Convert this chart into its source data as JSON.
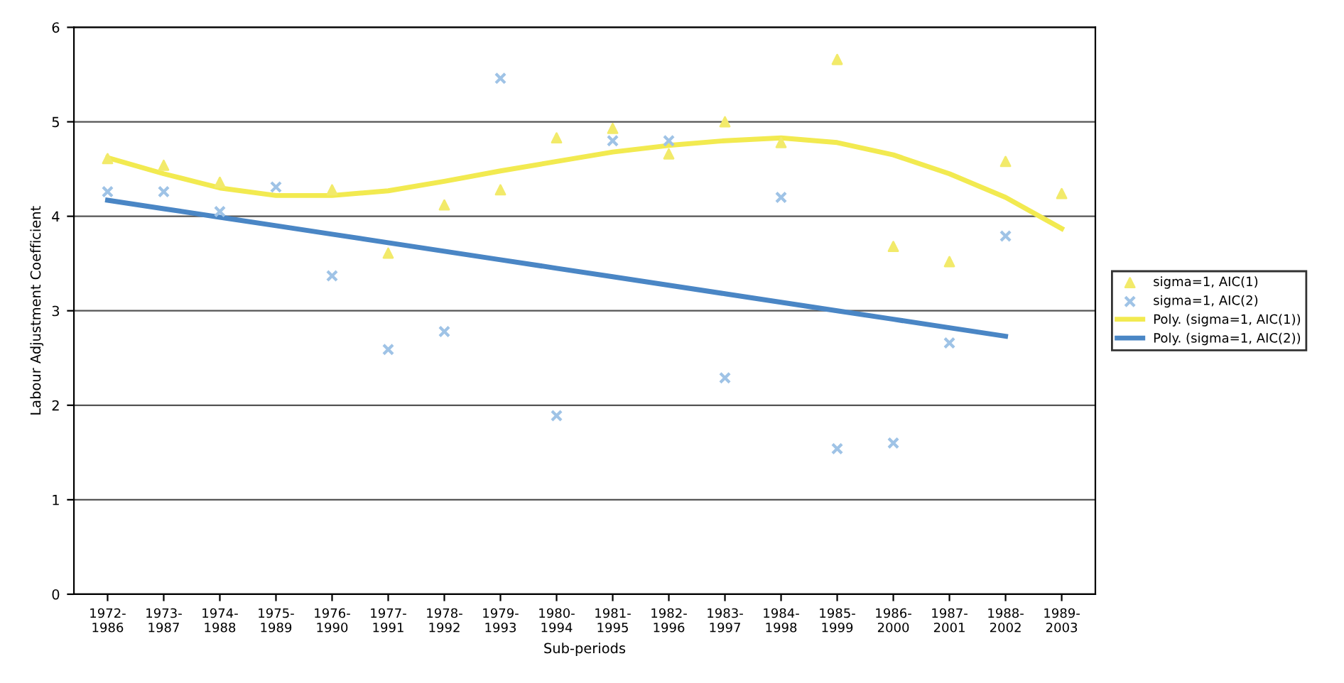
{
  "chart_data": {
    "type": "scatter",
    "xlabel": "Sub-periods",
    "ylabel": "Labour Adjustment Coefficient",
    "categories": [
      "1972-\n1986",
      "1973-\n1987",
      "1974-\n1988",
      "1975-\n1989",
      "1976-\n1990",
      "1977-\n1991",
      "1978-\n1992",
      "1979-\n1993",
      "1980-\n1994",
      "1981-\n1995",
      "1982-\n1996",
      "1983-\n1997",
      "1984-\n1998",
      "1985-\n1999",
      "1986-\n2000",
      "1987-\n2001",
      "1988-\n2002",
      "1989-\n2003"
    ],
    "series": [
      {
        "name": "sigma=1, AIC(1)",
        "marker": "triangle",
        "color": "#f2ea6a",
        "values": [
          4.61,
          4.54,
          4.36,
          null,
          4.28,
          3.61,
          4.12,
          4.28,
          4.83,
          4.93,
          4.66,
          5.0,
          4.78,
          5.66,
          3.68,
          3.52,
          4.58,
          4.24
        ]
      },
      {
        "name": "sigma=1, AIC(2)",
        "marker": "cross",
        "color": "#9fc3e6",
        "values": [
          4.26,
          4.26,
          4.05,
          4.31,
          3.37,
          2.59,
          2.78,
          5.46,
          1.89,
          4.8,
          4.8,
          2.29,
          4.2,
          1.54,
          1.6,
          2.66,
          3.79,
          null
        ]
      },
      {
        "name": "Poly. (sigma=1, AIC(1))",
        "type": "line",
        "marker": "none",
        "line_style": "solid",
        "color": "#f2ea50",
        "values": [
          4.62,
          4.45,
          4.3,
          4.22,
          4.22,
          4.27,
          4.37,
          4.48,
          4.58,
          4.68,
          4.75,
          4.8,
          4.83,
          4.78,
          4.65,
          4.45,
          4.2,
          3.87
        ]
      },
      {
        "name": "Poly. (sigma=1, AIC(2))",
        "type": "line",
        "marker": "none",
        "line_style": "solid",
        "color": "#4a86c5",
        "values": [
          4.17,
          4.08,
          3.99,
          3.9,
          3.81,
          3.72,
          3.63,
          3.54,
          3.45,
          3.36,
          3.27,
          3.18,
          3.09,
          3.0,
          2.91,
          2.82,
          2.73,
          null
        ]
      }
    ],
    "ylim": [
      0,
      6
    ],
    "yticks": [
      0,
      1,
      2,
      3,
      4,
      5,
      6
    ],
    "grid": "y",
    "legend": "right"
  }
}
